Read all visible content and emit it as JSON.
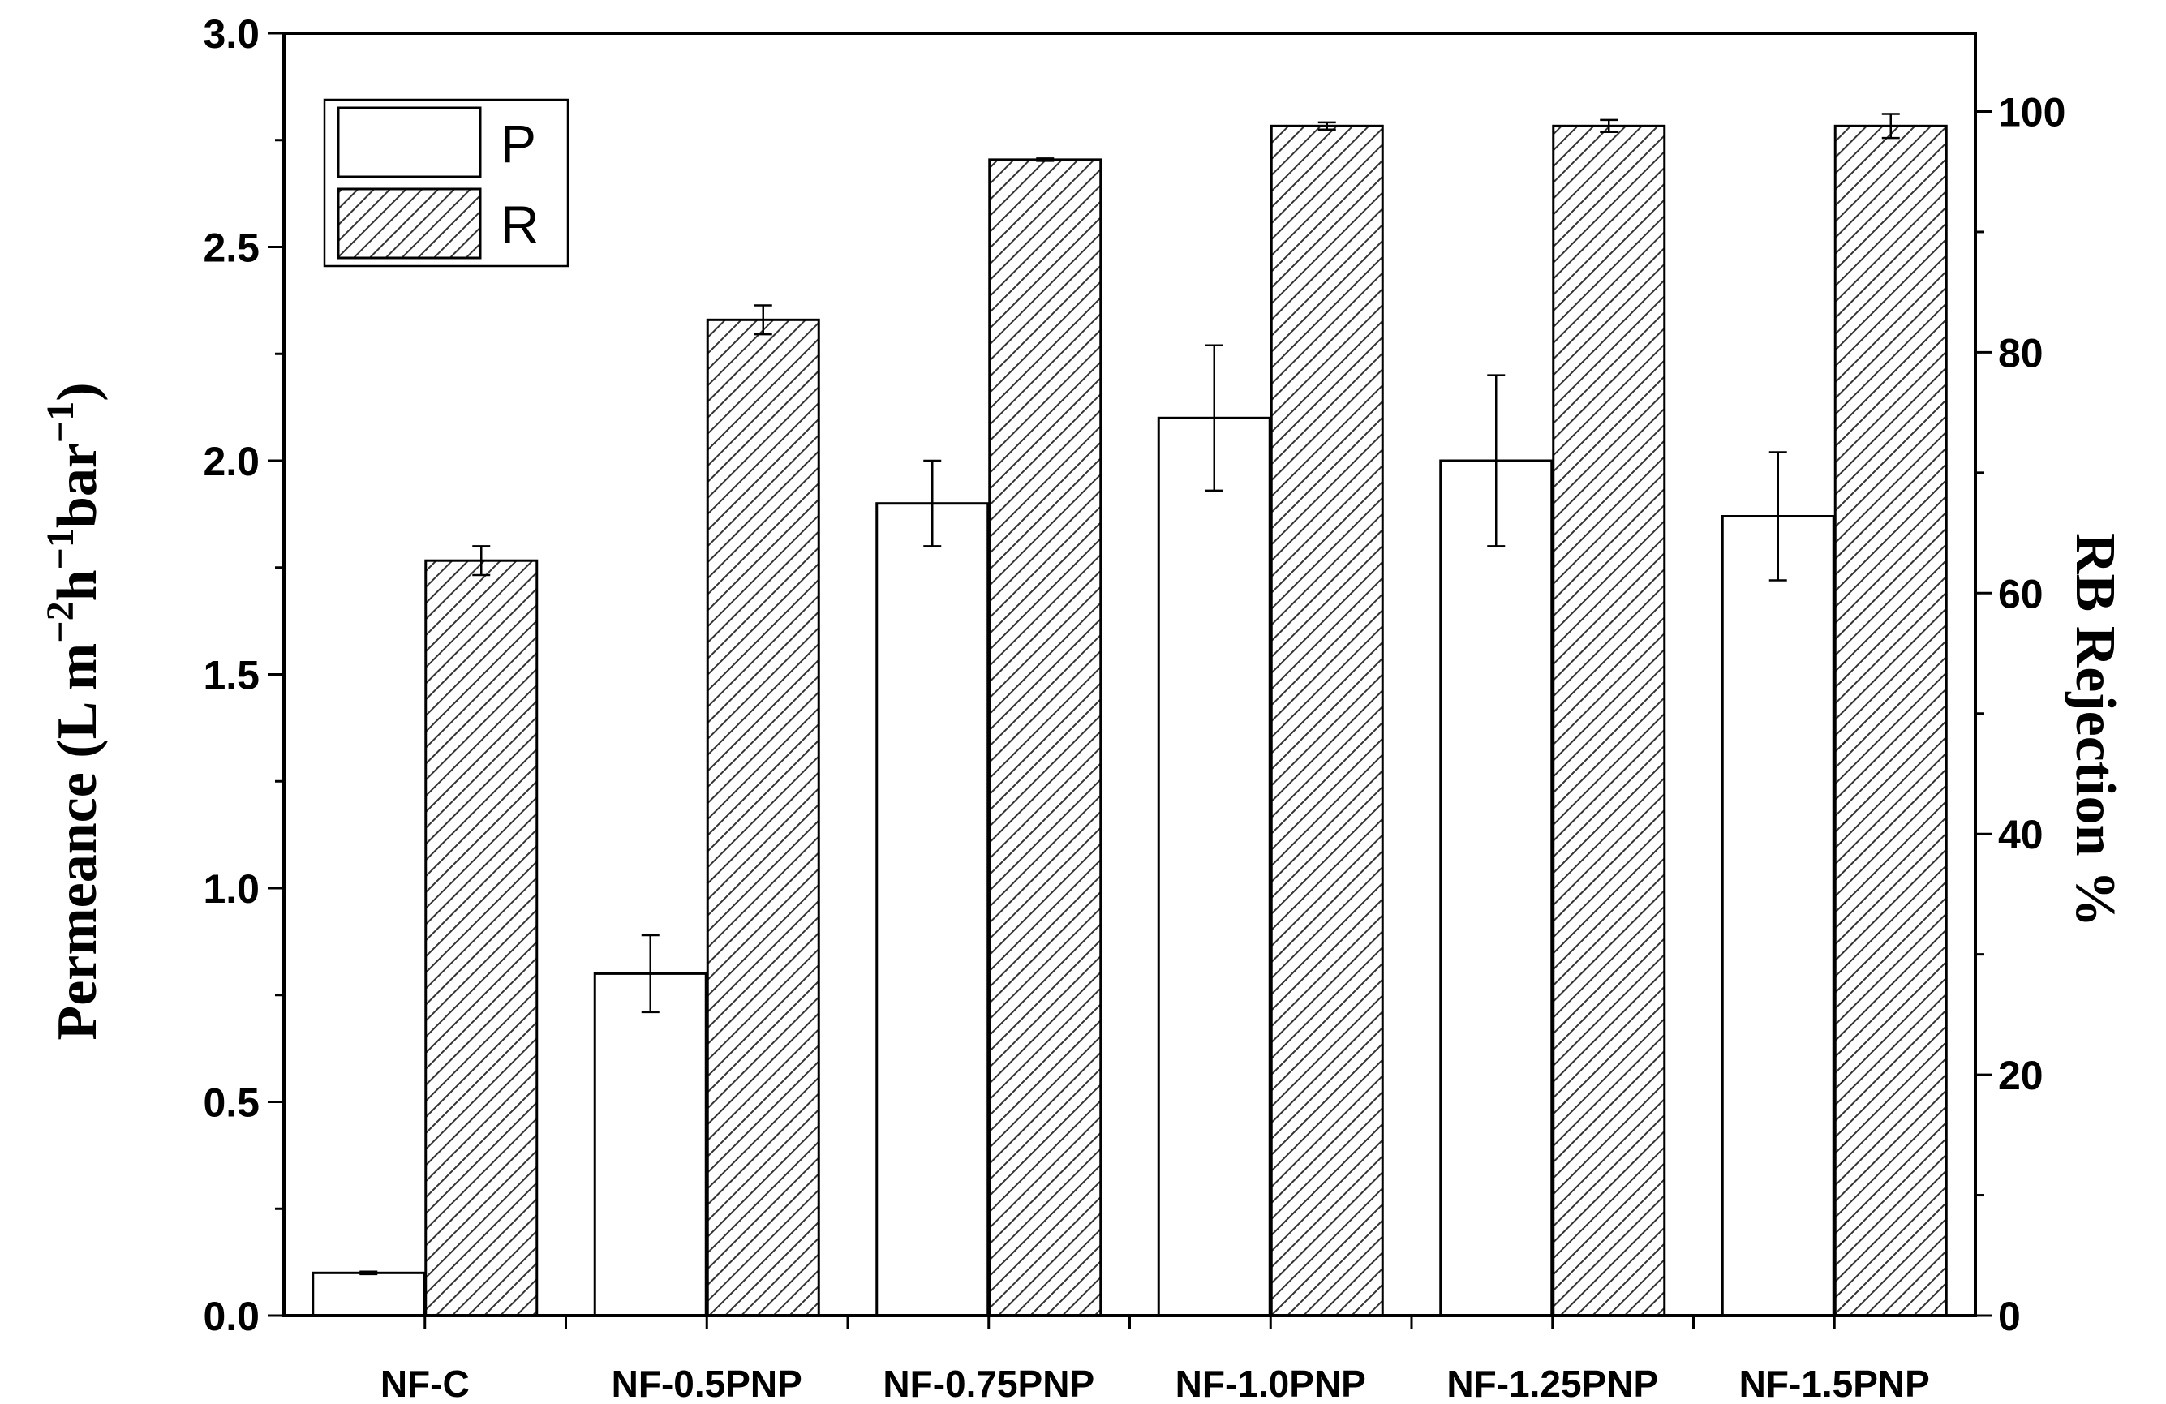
{
  "chart_data": {
    "type": "bar",
    "categories": [
      "NF-C",
      "NF-0.5PNP",
      "NF-0.75PNP",
      "NF-1.0PNP",
      "NF-1.25PNP",
      "NF-1.5PNP"
    ],
    "series": [
      {
        "name": "P",
        "axis": "left",
        "fill": "none",
        "values": [
          0.1,
          0.8,
          1.9,
          2.1,
          2.0,
          1.87
        ],
        "errors": [
          0.003,
          0.09,
          0.1,
          0.17,
          0.2,
          0.15
        ]
      },
      {
        "name": "R",
        "axis": "right",
        "fill": "hatched",
        "values": [
          62.7,
          82.7,
          96.0,
          98.8,
          98.8,
          98.8
        ],
        "errors": [
          1.2,
          1.2,
          0.1,
          0.3,
          0.5,
          1.0
        ]
      }
    ],
    "ylabel": {
      "main": "Permeance (L m",
      "sup1": "−2",
      "mid1": "h",
      "sup2": "−1",
      "mid2": "bar",
      "sup3": "−1",
      "end": ")"
    },
    "y2label": "RB Rejection %",
    "xlabel": "",
    "ylim": [
      0,
      3.0
    ],
    "y2lim": [
      0,
      106.5
    ],
    "yticks": [
      "0.0",
      "0.5",
      "1.0",
      "1.5",
      "2.0",
      "2.5",
      "3.0"
    ],
    "y2ticks": [
      "0",
      "20",
      "40",
      "60",
      "80",
      "100"
    ],
    "legend": {
      "position": "top-left",
      "entries": [
        "P",
        "R"
      ]
    },
    "grid": false,
    "colors": {
      "axis": "#000000",
      "bar_fill": "#ffffff",
      "hatch": "#333333"
    }
  }
}
